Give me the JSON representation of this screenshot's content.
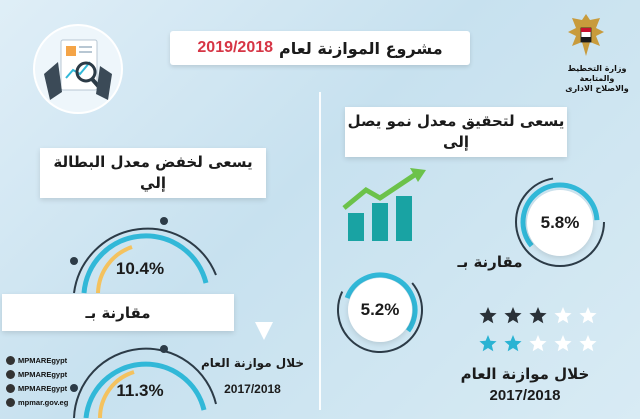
{
  "title": {
    "prefix": "مشروع الموازنة لعام",
    "year": "2019/2018"
  },
  "ministry": {
    "line1": "وزارة التخطيط والمتابعة",
    "line2": "والاصلاح الادارى"
  },
  "growth_section": {
    "heading": "يسعى لتحقيق معدل نمو يصل إلى",
    "target_value": "5.8%",
    "compare_label": "مقارنة بـ",
    "compare_value": "5.2%",
    "period_label": "خلال موازنة العام",
    "period_year": "2017/2018",
    "rating_top": 3,
    "rating_bottom": 2,
    "rating_total": 5
  },
  "unemployment_section": {
    "heading": "يسعى لخفض معدل البطالة إلي",
    "target_value": "10.4%",
    "compare_label": "مقارنة بـ",
    "compare_value": "11.3%",
    "period_label": "خلال موازنة العام",
    "period_year": "2017/2018"
  },
  "social": [
    {
      "icon": "facebook-icon",
      "label": "MPMAREgypt"
    },
    {
      "icon": "twitter-icon",
      "label": "MPMAREgypt"
    },
    {
      "icon": "instagram-icon",
      "label": "MPMAREgypt"
    },
    {
      "icon": "website-icon",
      "label": "mpmar.gov.eg"
    }
  ],
  "colors": {
    "accent_red": "#d63545",
    "ring_cyan": "#31b8d8",
    "ring_yellow": "#f4c25e",
    "ring_dark": "#2c3b47",
    "star_dark": "#2a3138",
    "star_cyan": "#2ab3d3",
    "bar_teal": "#19a3a3",
    "arrow_green": "#6cc24a"
  }
}
